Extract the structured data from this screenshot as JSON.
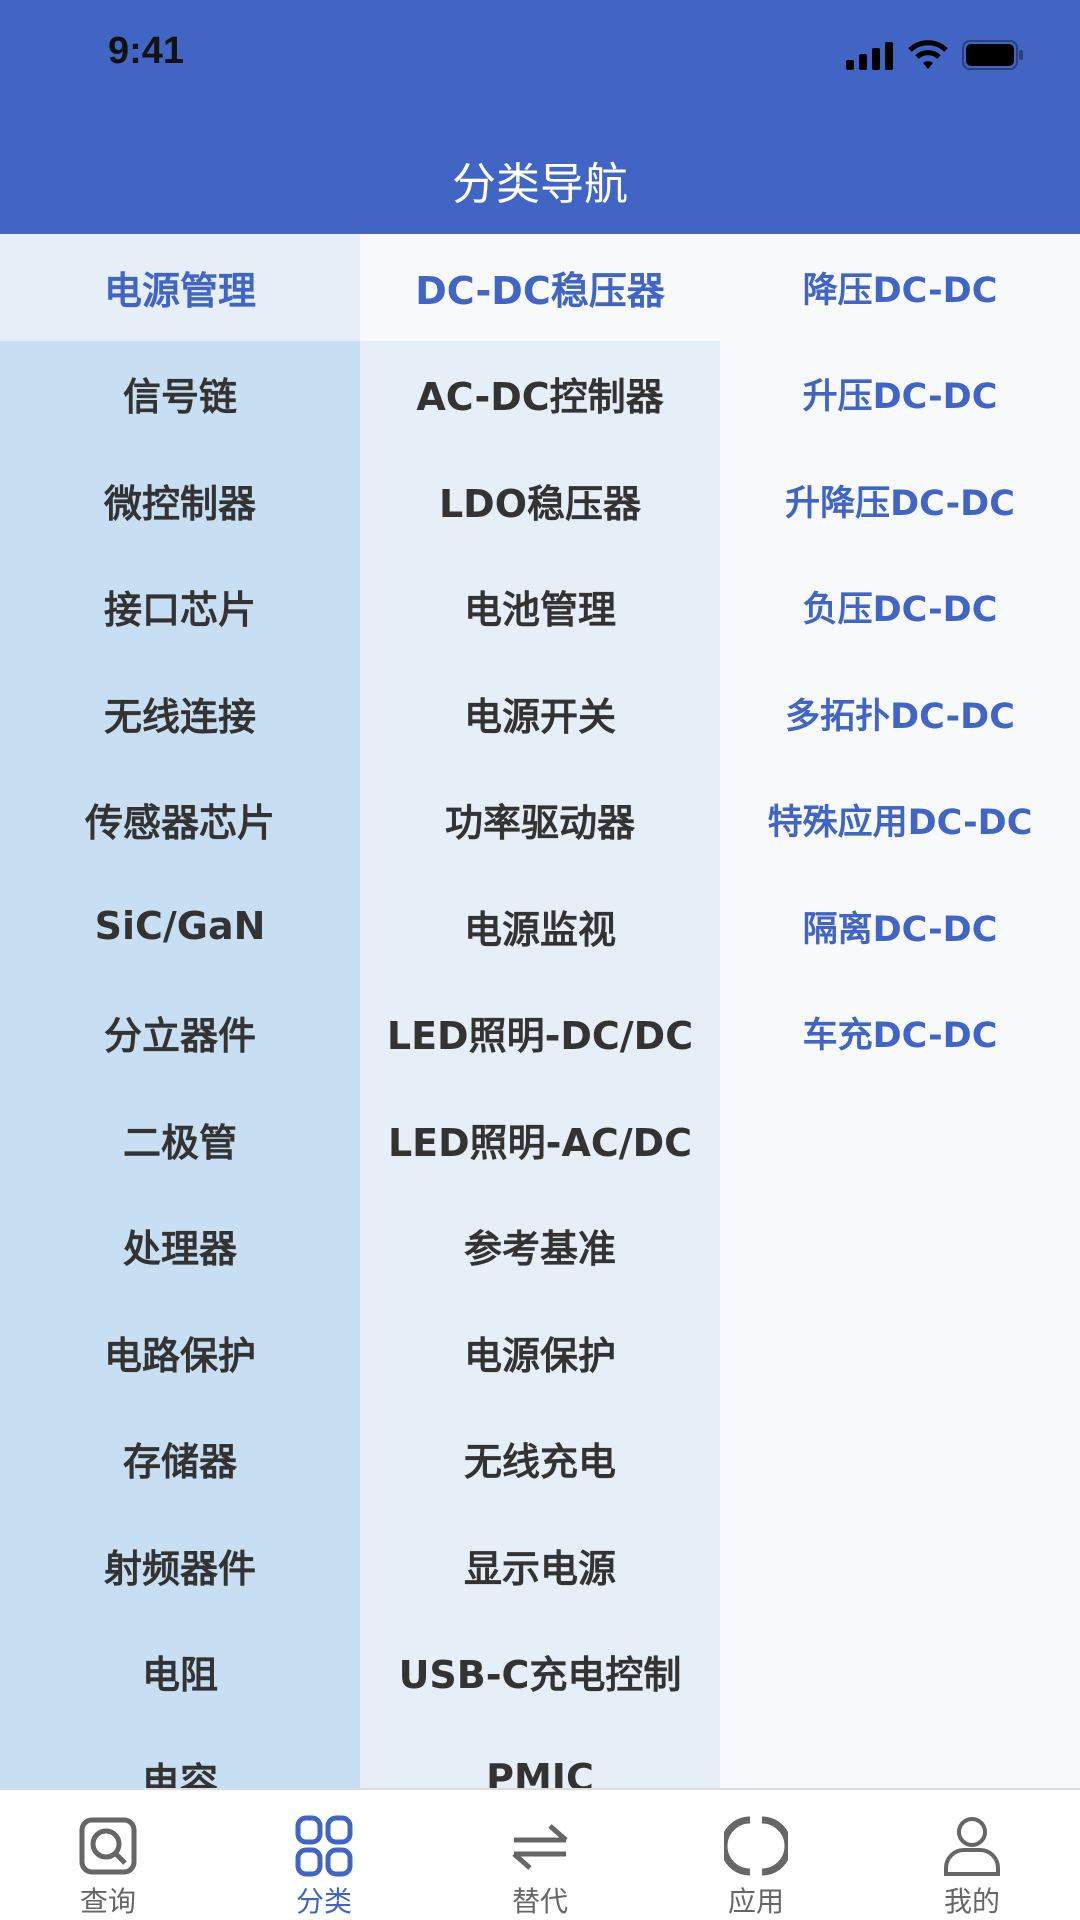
{
  "status_bar": {
    "time": "9:41"
  },
  "header": {
    "title": "分类导航"
  },
  "colors": {
    "brand": "#4065c4"
  },
  "categories": {
    "selected": 0,
    "items": [
      "电源管理",
      "信号链",
      "微控制器",
      "接口芯片",
      "无线连接",
      "传感器芯片",
      "SiC/GaN",
      "分立器件",
      "二极管",
      "处理器",
      "电路保护",
      "存储器",
      "射频器件",
      "电阻",
      "电容"
    ]
  },
  "subcategories": {
    "selected": 0,
    "items": [
      "DC-DC稳压器",
      "AC-DC控制器",
      "LDO稳压器",
      "电池管理",
      "电源开关",
      "功率驱动器",
      "电源监视",
      "LED照明-DC/DC",
      "LED照明-AC/DC",
      "参考基准",
      "电源保护",
      "无线充电",
      "显示电源",
      "USB-C充电控制",
      "PMIC"
    ]
  },
  "types": {
    "items": [
      "降压DC-DC",
      "升压DC-DC",
      "升降压DC-DC",
      "负压DC-DC",
      "多拓扑DC-DC",
      "特殊应用DC-DC",
      "隔离DC-DC",
      "车充DC-DC"
    ]
  },
  "tabbar": {
    "active": 1,
    "items": [
      {
        "label": "查询",
        "icon": "search-icon"
      },
      {
        "label": "分类",
        "icon": "grid-icon"
      },
      {
        "label": "替代",
        "icon": "swap-icon"
      },
      {
        "label": "应用",
        "icon": "circle-icon"
      },
      {
        "label": "我的",
        "icon": "user-icon"
      }
    ]
  }
}
